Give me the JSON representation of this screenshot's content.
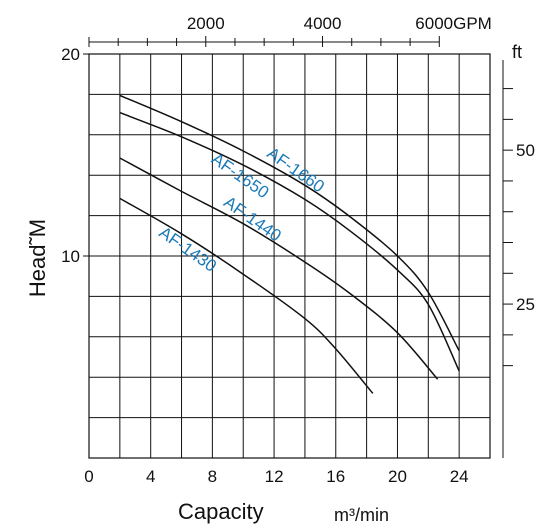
{
  "chart_data": {
    "type": "line",
    "x_bottom": {
      "label": "Capacity",
      "unit": "m³/min",
      "range": [
        0,
        26
      ],
      "ticks": [
        "0",
        "4",
        "8",
        "12",
        "16",
        "20",
        "24"
      ],
      "tick_values": [
        0,
        4,
        8,
        12,
        16,
        20,
        24
      ]
    },
    "x_top": {
      "unit": "GPM",
      "ticks": [
        "2000",
        "4000",
        "6000GPM"
      ],
      "tick_values": [
        2000,
        4000,
        6000
      ],
      "minor_tick_values": [
        500,
        1000,
        1500,
        2500,
        3000,
        3500,
        4500,
        5000,
        5500
      ]
    },
    "y_left": {
      "label": "Head˜M",
      "range": [
        0,
        20
      ],
      "ticks": [
        "20",
        "10"
      ],
      "tick_values": [
        20,
        10
      ]
    },
    "y_right": {
      "unit": "ft",
      "ticks": [
        "50",
        "25"
      ],
      "tick_values": [
        50,
        25
      ],
      "minor_tick_values": [
        15,
        20,
        30,
        35,
        40,
        45,
        55,
        60
      ]
    },
    "grid": true,
    "line_color": "#111111",
    "label_color": "#1a7ab8",
    "series": [
      {
        "name": "AF-1660",
        "x": [
          2,
          6,
          10,
          14,
          17,
          20,
          22,
          24
        ],
        "y": [
          17.95,
          16.65,
          15.2,
          13.5,
          11.9,
          10.0,
          8.2,
          5.3
        ]
      },
      {
        "name": "AF-1650",
        "x": [
          2,
          6,
          10,
          14,
          17,
          20,
          22,
          24
        ],
        "y": [
          17.1,
          15.9,
          14.5,
          12.8,
          11.2,
          9.3,
          7.6,
          4.3
        ]
      },
      {
        "name": "AF-1440",
        "x": [
          2,
          6,
          10,
          14,
          17,
          20,
          22.6
        ],
        "y": [
          14.85,
          13.2,
          11.6,
          9.7,
          8.1,
          6.2,
          3.9
        ]
      },
      {
        "name": "AF-1430",
        "x": [
          2,
          6,
          10,
          14,
          16,
          18.4
        ],
        "y": [
          12.85,
          11.1,
          9.1,
          6.9,
          5.4,
          3.2
        ]
      }
    ]
  }
}
